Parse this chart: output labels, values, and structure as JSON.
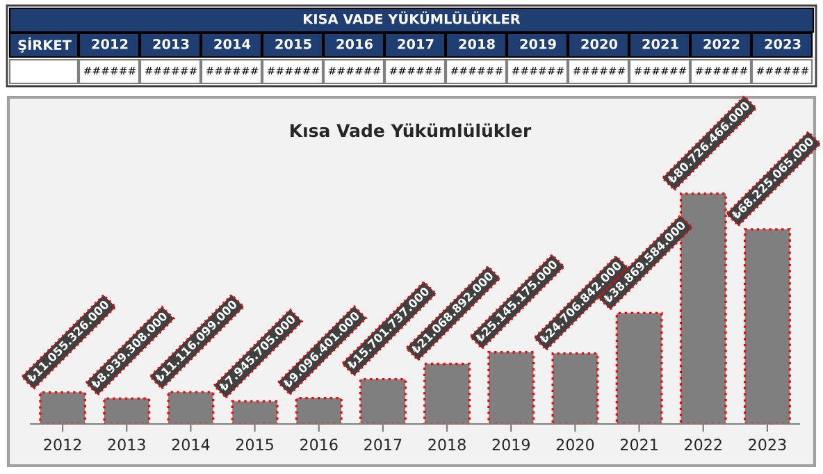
{
  "chart_data": {
    "type": "bar",
    "title": "Kısa Vade Yükümlülükler",
    "categories": [
      "2012",
      "2013",
      "2014",
      "2015",
      "2016",
      "2017",
      "2018",
      "2019",
      "2020",
      "2021",
      "2022",
      "2023"
    ],
    "values": [
      11055326000,
      8939308000,
      11116099000,
      7945705000,
      9096401000,
      15701737000,
      21068892000,
      25145175000,
      24706842000,
      38869584000,
      80726466000,
      68225065000
    ],
    "value_labels": [
      "₺11.055.326.000",
      "₺8.939.308.000",
      "₺11.116.099.000",
      "₺7.945.705.000",
      "₺9.096.401.000",
      "₺15.701.737.000",
      "₺21.068.892.000",
      "₺25.145.175.000",
      "₺24.706.842.000",
      "₺38.869.584.000",
      "₺80.726.466.000",
      "₺68.225.065.000"
    ],
    "color": "#7f7f7f",
    "annotations": [
      "KISA VADE YÜKÜMLÜLÜKLER",
      "ŞİRKET",
      "######",
      "######",
      "######",
      "######",
      "######",
      "######",
      "######",
      "######",
      "######",
      "######",
      "######",
      "######"
    ],
    "grid": false,
    "legend": false
  }
}
